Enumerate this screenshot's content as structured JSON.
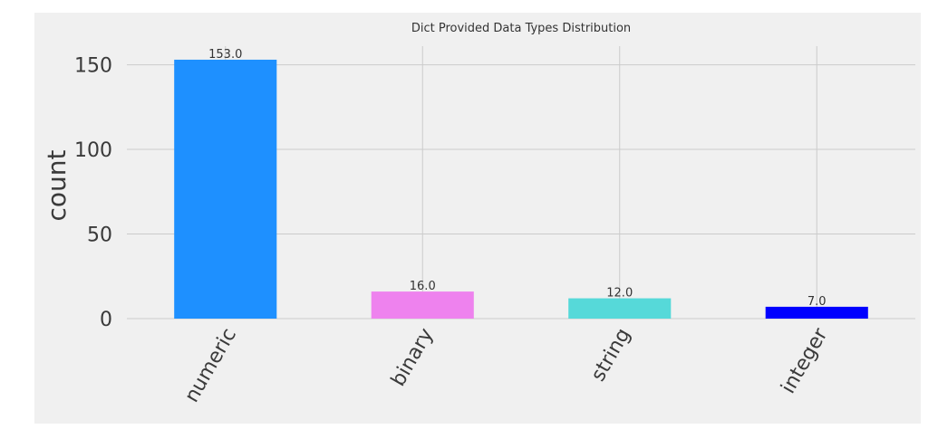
{
  "chart_data": {
    "type": "bar",
    "title": "Dict Provided Data Types Distribution",
    "xlabel": "",
    "ylabel": "count",
    "categories": [
      "numeric",
      "binary",
      "string",
      "integer"
    ],
    "values": [
      153.0,
      16.0,
      12.0,
      7.0
    ],
    "value_labels": [
      "153.0",
      "16.0",
      "12.0",
      "7.0"
    ],
    "colors": [
      "#1e90ff",
      "#ee82ee",
      "#56d9d9",
      "#0000ff"
    ],
    "ylim": [
      0,
      161
    ],
    "yticks": [
      0,
      50,
      100,
      150
    ],
    "ytick_labels": [
      "0",
      "50",
      "100",
      "150"
    ],
    "grid": true,
    "legend": "none",
    "x_tick_rotation_deg": 60
  },
  "style": {
    "plot_background": "#f0f0f0",
    "grid_color": "#cbcbcb"
  }
}
